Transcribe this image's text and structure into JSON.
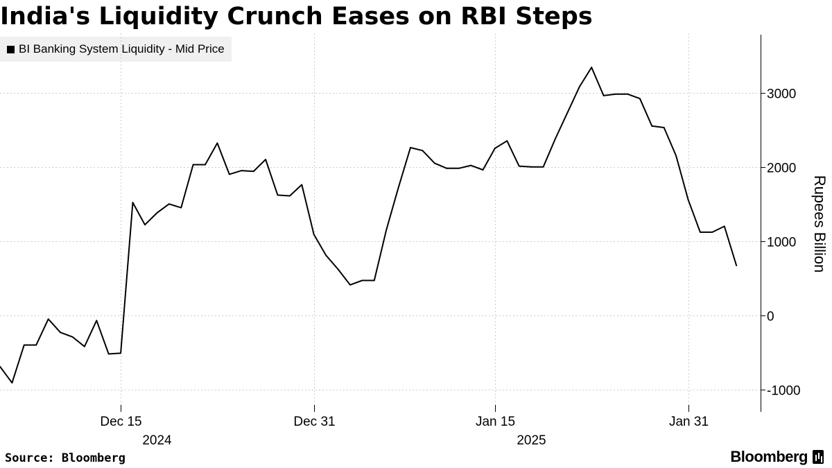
{
  "title": "India's Liquidity Crunch Eases on RBI Steps",
  "source": "Source: Bloomberg",
  "brand": "Bloomberg",
  "colors": {
    "line": "#000000",
    "legend_bg": "#f0f0f0",
    "grid": "#cccccc"
  },
  "chart_data": {
    "type": "line",
    "title": "India's Liquidity Crunch Eases on RBI Steps",
    "ylabel": "Rupees Billion",
    "xlabel": "",
    "ylim": [
      -1300,
      3800
    ],
    "yticks": [
      -1000,
      0,
      1000,
      2000,
      3000
    ],
    "ytick_labels": [
      "-1000",
      "0",
      "1000",
      "2000",
      "3000"
    ],
    "grid": true,
    "legend_position": "top-left",
    "x_start": "2024-12-05",
    "x_end": "2025-02-06",
    "xticks": [
      {
        "date": "2024-12-15",
        "label": "Dec 15",
        "year": "2024"
      },
      {
        "date": "2024-12-31",
        "label": "Dec 31",
        "year": ""
      },
      {
        "date": "2025-01-15",
        "label": "Jan 15",
        "year": "2025"
      },
      {
        "date": "2025-01-31",
        "label": "Jan 31",
        "year": ""
      }
    ],
    "series": [
      {
        "name": "BI Banking System Liquidity - Mid Price",
        "points": [
          [
            "2024-12-05",
            -690
          ],
          [
            "2024-12-06",
            -910
          ],
          [
            "2024-12-07",
            -400
          ],
          [
            "2024-12-08",
            -400
          ],
          [
            "2024-12-09",
            -50
          ],
          [
            "2024-12-10",
            -230
          ],
          [
            "2024-12-11",
            -290
          ],
          [
            "2024-12-12",
            -420
          ],
          [
            "2024-12-13",
            -70
          ],
          [
            "2024-12-14",
            -520
          ],
          [
            "2024-12-15",
            -510
          ],
          [
            "2024-12-16",
            1520
          ],
          [
            "2024-12-17",
            1220
          ],
          [
            "2024-12-18",
            1380
          ],
          [
            "2024-12-19",
            1500
          ],
          [
            "2024-12-20",
            1450
          ],
          [
            "2024-12-21",
            2030
          ],
          [
            "2024-12-22",
            2030
          ],
          [
            "2024-12-23",
            2320
          ],
          [
            "2024-12-24",
            1900
          ],
          [
            "2024-12-25",
            1950
          ],
          [
            "2024-12-26",
            1940
          ],
          [
            "2024-12-27",
            2100
          ],
          [
            "2024-12-28",
            1620
          ],
          [
            "2024-12-29",
            1610
          ],
          [
            "2024-12-30",
            1760
          ],
          [
            "2024-12-31",
            1090
          ],
          [
            "2025-01-01",
            810
          ],
          [
            "2025-01-02",
            620
          ],
          [
            "2025-01-03",
            410
          ],
          [
            "2025-01-04",
            470
          ],
          [
            "2025-01-05",
            470
          ],
          [
            "2025-01-06",
            1150
          ],
          [
            "2025-01-07",
            1720
          ],
          [
            "2025-01-08",
            2260
          ],
          [
            "2025-01-09",
            2220
          ],
          [
            "2025-01-10",
            2050
          ],
          [
            "2025-01-11",
            1980
          ],
          [
            "2025-01-12",
            1980
          ],
          [
            "2025-01-13",
            2020
          ],
          [
            "2025-01-14",
            1960
          ],
          [
            "2025-01-15",
            2250
          ],
          [
            "2025-01-16",
            2350
          ],
          [
            "2025-01-17",
            2010
          ],
          [
            "2025-01-18",
            2000
          ],
          [
            "2025-01-19",
            2000
          ],
          [
            "2025-01-20",
            2380
          ],
          [
            "2025-01-21",
            2730
          ],
          [
            "2025-01-22",
            3080
          ],
          [
            "2025-01-23",
            3340
          ],
          [
            "2025-01-24",
            2960
          ],
          [
            "2025-01-25",
            2980
          ],
          [
            "2025-01-26",
            2980
          ],
          [
            "2025-01-27",
            2920
          ],
          [
            "2025-01-28",
            2550
          ],
          [
            "2025-01-29",
            2530
          ],
          [
            "2025-01-30",
            2150
          ],
          [
            "2025-01-31",
            1560
          ],
          [
            "2025-02-01",
            1120
          ],
          [
            "2025-02-02",
            1120
          ],
          [
            "2025-02-03",
            1200
          ],
          [
            "2025-02-04",
            670
          ]
        ]
      }
    ]
  }
}
